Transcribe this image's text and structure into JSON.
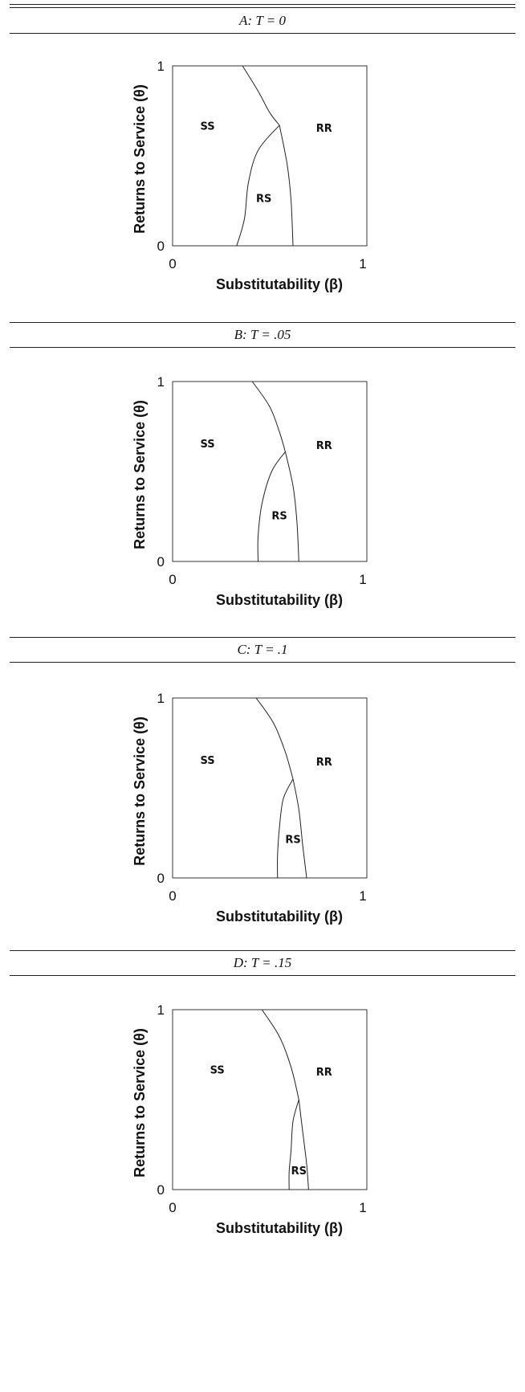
{
  "chart_data": [
    {
      "type": "diagram",
      "title": "A: T = 0",
      "xlabel": "Substitutability (β)",
      "ylabel": "Returns to Service (θ)",
      "xlim": [
        0,
        1
      ],
      "ylim": [
        0,
        1
      ],
      "x_ticks": [
        "0",
        "1"
      ],
      "y_ticks": [
        "0",
        "1"
      ],
      "boundaries": {
        "ss_rr": [
          [
            0.36,
            1.0
          ],
          [
            0.44,
            0.86
          ],
          [
            0.5,
            0.74
          ],
          [
            0.55,
            0.67
          ]
        ],
        "ss_rs": [
          [
            0.55,
            0.67
          ],
          [
            0.44,
            0.53
          ],
          [
            0.39,
            0.35
          ],
          [
            0.37,
            0.15
          ],
          [
            0.33,
            0.0
          ]
        ],
        "rs_rr": [
          [
            0.55,
            0.67
          ],
          [
            0.59,
            0.45
          ],
          [
            0.61,
            0.25
          ],
          [
            0.62,
            0.0
          ]
        ]
      },
      "regions": [
        {
          "label": "SS",
          "x": 0.18,
          "y": 0.66
        },
        {
          "label": "RR",
          "x": 0.78,
          "y": 0.65
        },
        {
          "label": "RS",
          "x": 0.47,
          "y": 0.26
        }
      ]
    },
    {
      "type": "diagram",
      "title": "B: T = .05",
      "xlabel": "Substitutability (β)",
      "ylabel": "Returns to Service (θ)",
      "xlim": [
        0,
        1
      ],
      "ylim": [
        0,
        1
      ],
      "x_ticks": [
        "0",
        "1"
      ],
      "y_ticks": [
        "0",
        "1"
      ],
      "boundaries": {
        "ss_rr": [
          [
            0.41,
            1.0
          ],
          [
            0.5,
            0.86
          ],
          [
            0.55,
            0.72
          ],
          [
            0.58,
            0.61
          ]
        ],
        "ss_rs": [
          [
            0.58,
            0.61
          ],
          [
            0.51,
            0.5
          ],
          [
            0.46,
            0.32
          ],
          [
            0.44,
            0.14
          ],
          [
            0.44,
            0.0
          ]
        ],
        "rs_rr": [
          [
            0.58,
            0.61
          ],
          [
            0.62,
            0.42
          ],
          [
            0.64,
            0.22
          ],
          [
            0.65,
            0.0
          ]
        ]
      },
      "regions": [
        {
          "label": "SS",
          "x": 0.18,
          "y": 0.65
        },
        {
          "label": "RR",
          "x": 0.78,
          "y": 0.64
        },
        {
          "label": "RS",
          "x": 0.55,
          "y": 0.25
        }
      ]
    },
    {
      "type": "diagram",
      "title": "C: T = .1",
      "xlabel": "Substitutability (β)",
      "ylabel": "Returns to Service (θ)",
      "xlim": [
        0,
        1
      ],
      "ylim": [
        0,
        1
      ],
      "x_ticks": [
        "0",
        "1"
      ],
      "y_ticks": [
        "0",
        "1"
      ],
      "boundaries": {
        "ss_rr": [
          [
            0.43,
            1.0
          ],
          [
            0.52,
            0.86
          ],
          [
            0.58,
            0.7
          ],
          [
            0.62,
            0.55
          ]
        ],
        "ss_rs": [
          [
            0.62,
            0.55
          ],
          [
            0.57,
            0.44
          ],
          [
            0.55,
            0.28
          ],
          [
            0.54,
            0.12
          ],
          [
            0.54,
            0.0
          ]
        ],
        "rs_rr": [
          [
            0.62,
            0.55
          ],
          [
            0.65,
            0.38
          ],
          [
            0.67,
            0.18
          ],
          [
            0.69,
            0.0
          ]
        ]
      },
      "regions": [
        {
          "label": "SS",
          "x": 0.18,
          "y": 0.65
        },
        {
          "label": "RR",
          "x": 0.78,
          "y": 0.64
        },
        {
          "label": "RS",
          "x": 0.62,
          "y": 0.21
        }
      ]
    },
    {
      "type": "diagram",
      "title": "D: T = .15",
      "xlabel": "Substitutability (β)",
      "ylabel": "Returns to Service (θ)",
      "xlim": [
        0,
        1
      ],
      "ylim": [
        0,
        1
      ],
      "x_ticks": [
        "0",
        "1"
      ],
      "y_ticks": [
        "0",
        "1"
      ],
      "boundaries": {
        "ss_rr": [
          [
            0.46,
            1.0
          ],
          [
            0.55,
            0.85
          ],
          [
            0.61,
            0.68
          ],
          [
            0.65,
            0.5
          ]
        ],
        "ss_rs": [
          [
            0.65,
            0.5
          ],
          [
            0.62,
            0.38
          ],
          [
            0.61,
            0.22
          ],
          [
            0.6,
            0.1
          ],
          [
            0.6,
            0.0
          ]
        ],
        "rs_rr": [
          [
            0.65,
            0.5
          ],
          [
            0.67,
            0.32
          ],
          [
            0.69,
            0.14
          ],
          [
            0.7,
            0.0
          ]
        ]
      },
      "regions": [
        {
          "label": "SS",
          "x": 0.23,
          "y": 0.66
        },
        {
          "label": "RR",
          "x": 0.78,
          "y": 0.65
        },
        {
          "label": "RS",
          "x": 0.65,
          "y": 0.1
        }
      ]
    }
  ]
}
